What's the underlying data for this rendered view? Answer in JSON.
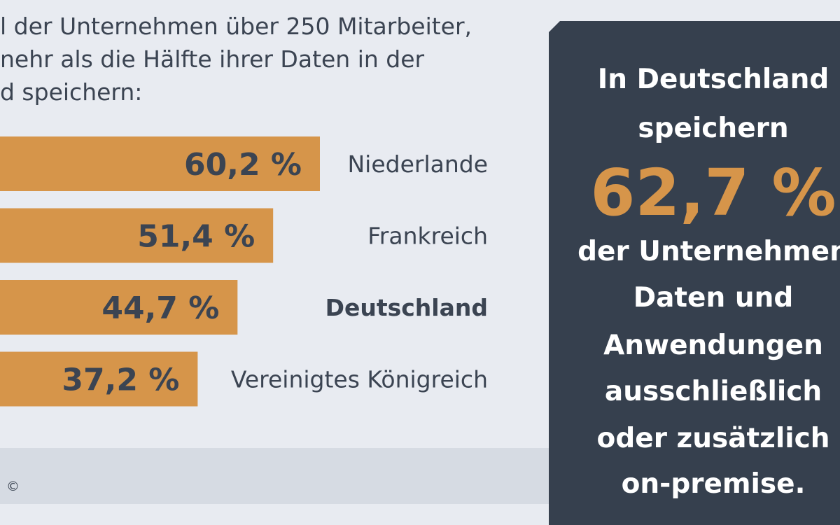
{
  "intro": {
    "lines": [
      "l der Unternehmen über 250 Mitarbeiter,",
      "nehr als die Hälfte ihrer Daten in der",
      "d speichern:"
    ]
  },
  "chart_data": {
    "type": "bar",
    "orientation": "horizontal",
    "categories": [
      "Niederlande",
      "Frankreich",
      "Deutschland",
      "Vereinigtes Königreich"
    ],
    "values": [
      60.2,
      51.4,
      44.7,
      37.2
    ],
    "value_labels": [
      "60,2 %",
      "51,4 %",
      "44,7 %",
      "37,2 %"
    ],
    "highlight": "Deutschland",
    "unit": "%",
    "bar_color": "#d6954a"
  },
  "panel": {
    "line1": "In Deutschland",
    "line2": "speichern",
    "big_value": "62,7 %",
    "line3": "der Unternehmen",
    "line4": "Daten und",
    "line5": "Anwendungen",
    "line6": "ausschließlich",
    "line7": "oder zusätzlich",
    "line8": "on-premise."
  },
  "footer": {
    "copyright": "©"
  },
  "colors": {
    "background": "#e8ebf1",
    "panel": "#36404e",
    "accent": "#d6954a",
    "text": "#3b4452"
  }
}
